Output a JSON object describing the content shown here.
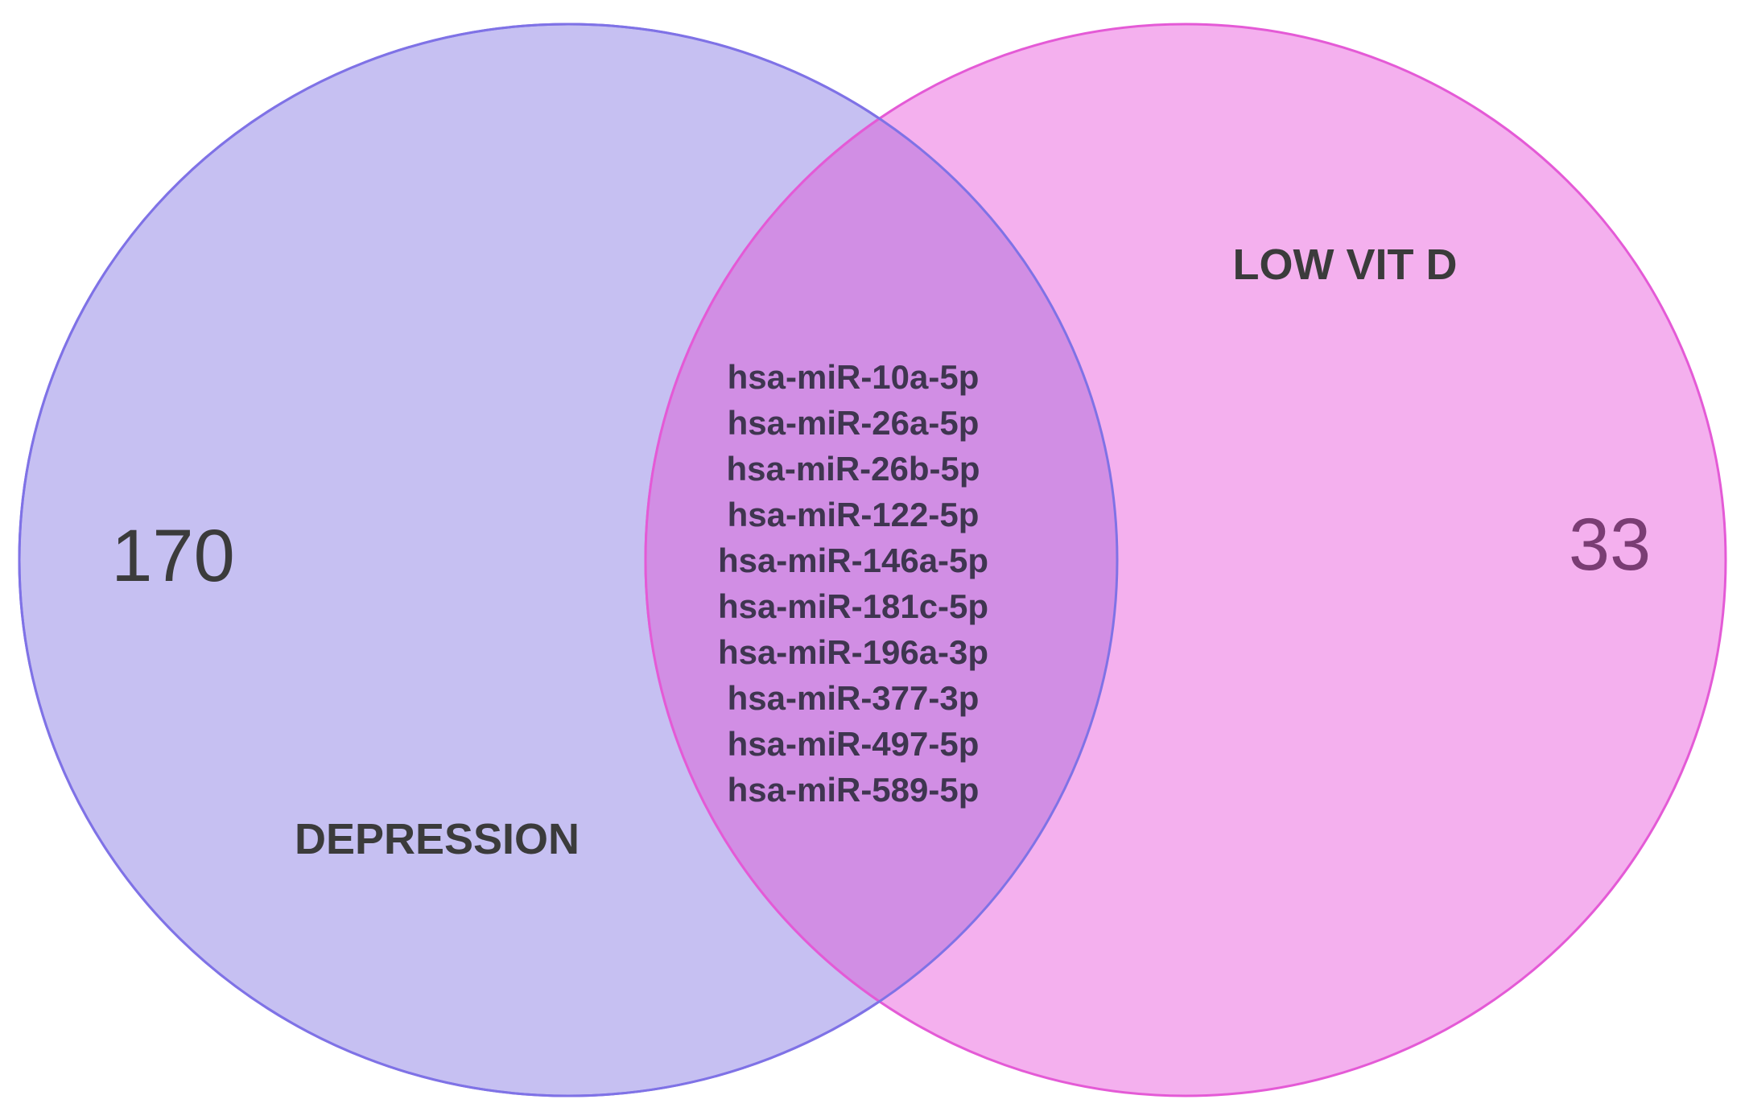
{
  "colors": {
    "depression_fill": "#c6c0f2",
    "depression_stroke": "#7f72e6",
    "vitd_fill": "#f4b0ee",
    "vitd_stroke": "#e45ad6",
    "overlap_fill": "#d18ee4",
    "count_left": "#3b3b3b",
    "count_right": "#7a3d74"
  },
  "sets": [
    {
      "name": "DEPRESSION",
      "unique_count": "170"
    },
    {
      "name": "LOW VIT D",
      "unique_count": "33"
    }
  ],
  "intersection": {
    "items": [
      "hsa-miR-10a-5p",
      "hsa-miR-26a-5p",
      "hsa-miR-26b-5p",
      "hsa-miR-122-5p",
      "hsa-miR-146a-5p",
      "hsa-miR-181c-5p",
      "hsa-miR-196a-3p",
      "hsa-miR-377-3p",
      "hsa-miR-497-5p",
      "hsa-miR-589-5p"
    ]
  }
}
